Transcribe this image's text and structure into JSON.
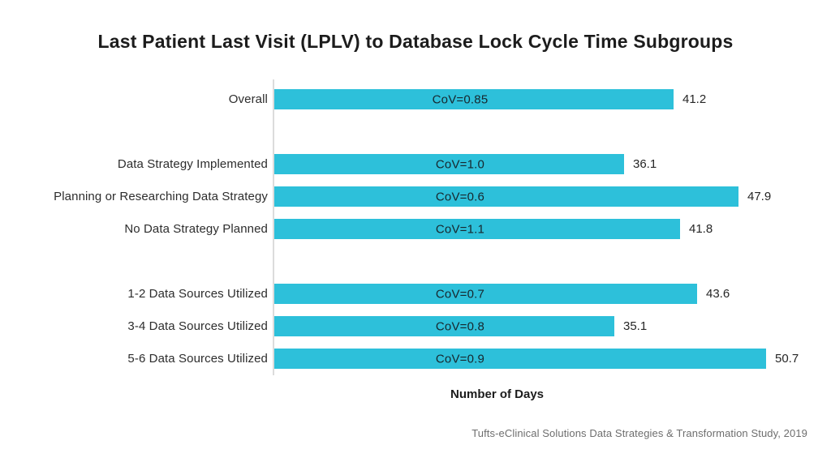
{
  "chart_data": {
    "type": "bar",
    "orientation": "horizontal",
    "title": "Last Patient Last Visit (LPLV) to Database Lock Cycle Time Subgroups",
    "xlabel": "Number of Days",
    "source": "Tufts-eClinical Solutions Data Strategies & Transformation Study, 2019",
    "xlim": [
      0,
      55
    ],
    "grid": false,
    "legend": false,
    "bar_color": "#2dc0da",
    "groups": [
      {
        "rows": [
          {
            "label": "Overall",
            "cov": "CoV=0.85",
            "value": 41.2
          }
        ]
      },
      {
        "rows": [
          {
            "label": "Data Strategy Implemented",
            "cov": "CoV=1.0",
            "value": 36.1
          },
          {
            "label": "Planning or Researching Data Strategy",
            "cov": "CoV=0.6",
            "value": 47.9
          },
          {
            "label": "No Data Strategy Planned",
            "cov": "CoV=1.1",
            "value": 41.8
          }
        ]
      },
      {
        "rows": [
          {
            "label": "1-2 Data Sources Utilized",
            "cov": "CoV=0.7",
            "value": 43.6
          },
          {
            "label": "3-4 Data Sources Utilized",
            "cov": "CoV=0.8",
            "value": 35.1
          },
          {
            "label": "5-6 Data Sources Utilized",
            "cov": "CoV=0.9",
            "value": 50.7
          }
        ]
      }
    ]
  }
}
